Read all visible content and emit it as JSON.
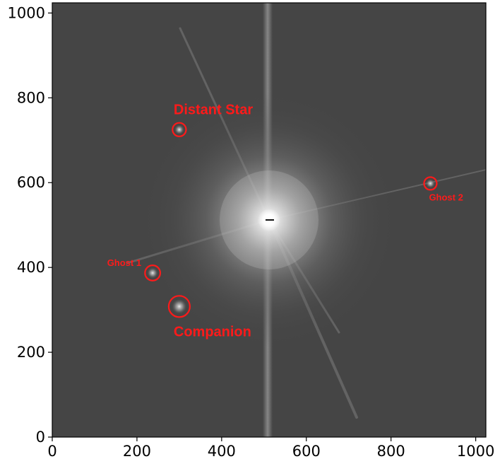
{
  "chart_data": {
    "type": "image",
    "xlim": [
      0,
      1024
    ],
    "ylim": [
      0,
      1024
    ],
    "x_ticks": [
      0,
      200,
      400,
      600,
      800,
      1000
    ],
    "x_tick_labels": [
      "0",
      "200",
      "400",
      "600",
      "800",
      "1000"
    ],
    "y_ticks": [
      0,
      200,
      400,
      600,
      800,
      1000
    ],
    "y_tick_labels": [
      "0",
      "200",
      "400",
      "600",
      "800",
      "1000"
    ],
    "colormap": "gray",
    "central_star": {
      "x": 512,
      "y": 512
    },
    "annotations": [
      {
        "id": "distant-star",
        "label": "Distant Star",
        "x": 300,
        "y": 725,
        "radius": 16,
        "size": "large"
      },
      {
        "id": "ghost-2",
        "label": "Ghost 2",
        "x": 893,
        "y": 598,
        "radius": 15,
        "size": "small"
      },
      {
        "id": "ghost-1",
        "label": "Ghost 1",
        "x": 237,
        "y": 387,
        "radius": 18,
        "size": "small"
      },
      {
        "id": "companion",
        "label": "Companion",
        "x": 300,
        "y": 308,
        "radius": 25,
        "size": "large"
      }
    ],
    "annotation_color": "#ff1a1a"
  }
}
